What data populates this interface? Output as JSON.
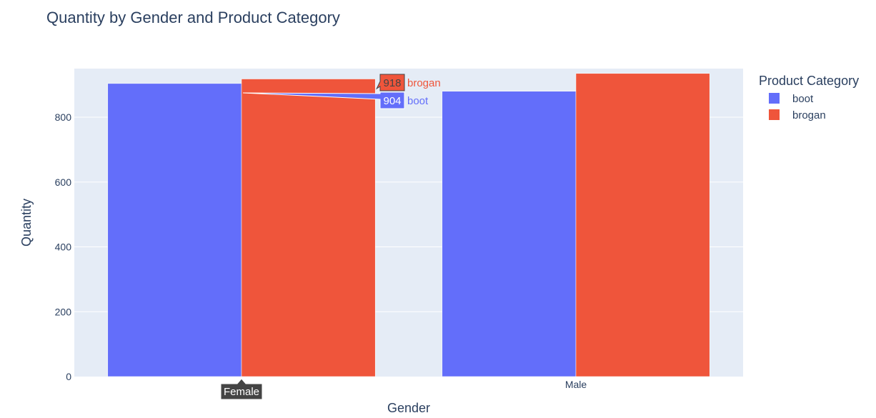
{
  "chart_data": {
    "type": "bar",
    "title": "Quantity by Gender and Product Category",
    "xlabel": "Gender",
    "ylabel": "Quantity",
    "categories": [
      "Female",
      "Male"
    ],
    "series": [
      {
        "name": "boot",
        "values": [
          904,
          880
        ],
        "color": "#636efa"
      },
      {
        "name": "brogan",
        "values": [
          918,
          935
        ],
        "color": "#ef553b"
      }
    ],
    "ylim": [
      0,
      950
    ],
    "yticks": [
      0,
      200,
      400,
      600,
      800
    ],
    "grid": true,
    "background": "#e5ecf6",
    "legend": {
      "title": "Product Category",
      "placement": "right"
    },
    "hover": {
      "category": "Female",
      "labels": [
        {
          "series": "brogan",
          "value": "918",
          "name": "brogan"
        },
        {
          "series": "boot",
          "value": "904",
          "name": "boot"
        }
      ],
      "axis_label": "Female"
    }
  }
}
